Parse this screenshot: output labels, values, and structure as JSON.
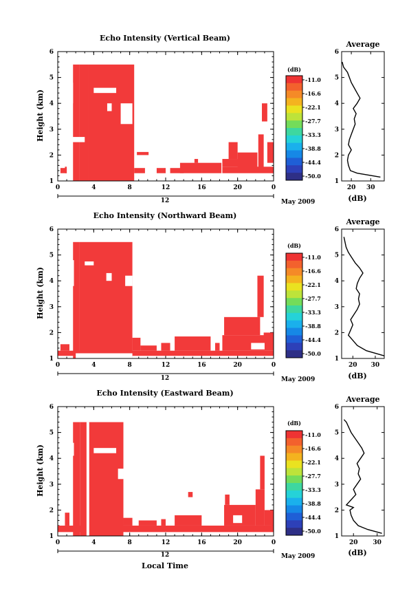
{
  "figure": {
    "x_axis_label": "Local Time",
    "date_label": "May 2009",
    "day_label": "12"
  },
  "chart_data": [
    {
      "type": "heatmap",
      "title": "Echo Intensity (Vertical Beam)",
      "ylabel": "Height (km)",
      "xlim": [
        0,
        24
      ],
      "ylim": [
        1,
        6
      ],
      "xticks": [
        "0",
        "4",
        "8",
        "12",
        "16",
        "20",
        "0"
      ],
      "yticks": [
        "1",
        "2",
        "3",
        "4",
        "5",
        "6"
      ],
      "colorbar": {
        "title": "(dB)",
        "labels": [
          "-11.0",
          "-16.6",
          "-22.1",
          "-27.7",
          "-33.3",
          "-38.8",
          "-44.4",
          "-50.0"
        ]
      },
      "cells": [
        [
          0.8,
          1.0,
          1.3,
          1.55
        ],
        [
          0.3,
          1.0,
          1.3,
          1.5
        ],
        [
          1.7,
          2.4,
          1.0,
          5.5
        ],
        [
          2.4,
          3.4,
          1.0,
          5.5
        ],
        [
          3.4,
          8.5,
          1.0,
          5.5
        ],
        [
          8.5,
          9.7,
          1.3,
          1.5
        ],
        [
          8.8,
          10.1,
          2.0,
          2.12
        ],
        [
          11.0,
          12.0,
          1.3,
          1.5
        ],
        [
          12.5,
          14.0,
          1.3,
          1.5
        ],
        [
          13.6,
          18.2,
          1.3,
          1.7
        ],
        [
          15.2,
          15.6,
          1.7,
          1.85
        ],
        [
          18.3,
          24.0,
          1.3,
          1.55
        ],
        [
          18.3,
          20.2,
          1.55,
          1.85
        ],
        [
          19.0,
          20.0,
          1.85,
          2.5
        ],
        [
          20.0,
          22.2,
          1.4,
          2.1
        ],
        [
          22.3,
          22.9,
          1.5,
          2.8
        ],
        [
          22.7,
          23.3,
          3.3,
          4.0
        ],
        [
          23.3,
          24.0,
          1.7,
          2.5
        ]
      ],
      "holes": [
        [
          4.0,
          6.5,
          4.4,
          4.6
        ],
        [
          1.3,
          1.7,
          4.0,
          4.8
        ],
        [
          7.0,
          8.3,
          3.2,
          4.0
        ],
        [
          5.5,
          6.0,
          3.7,
          4.0
        ],
        [
          1.5,
          3.0,
          2.5,
          2.7
        ]
      ],
      "average": {
        "xlim": [
          15,
          37
        ],
        "xticks": [
          "20",
          "30"
        ],
        "xlabel": "(dB)",
        "title": "Average",
        "profile": [
          [
            1.15,
            35.0
          ],
          [
            1.3,
            23.0
          ],
          [
            1.4,
            19.5
          ],
          [
            1.6,
            18.5
          ],
          [
            1.8,
            18.0
          ],
          [
            2.0,
            18.5
          ],
          [
            2.2,
            20.0
          ],
          [
            2.4,
            18.5
          ],
          [
            2.6,
            19.0
          ],
          [
            2.8,
            20.0
          ],
          [
            3.0,
            21.0
          ],
          [
            3.2,
            22.0
          ],
          [
            3.4,
            21.5
          ],
          [
            3.6,
            22.5
          ],
          [
            3.8,
            21.0
          ],
          [
            4.0,
            23.0
          ],
          [
            4.2,
            24.5
          ],
          [
            4.4,
            23.0
          ],
          [
            4.6,
            21.5
          ],
          [
            4.8,
            20.0
          ],
          [
            5.0,
            19.0
          ],
          [
            5.2,
            18.0
          ],
          [
            5.4,
            16.0
          ],
          [
            5.6,
            15.3
          ]
        ]
      }
    },
    {
      "type": "heatmap",
      "title": "Echo Intensity (Northward Beam)",
      "ylabel": "Height (km)",
      "xlim": [
        0,
        24
      ],
      "ylim": [
        1,
        6
      ],
      "xticks": [
        "0",
        "4",
        "8",
        "12",
        "16",
        "20",
        "0"
      ],
      "yticks": [
        "1",
        "2",
        "3",
        "4",
        "5",
        "6"
      ],
      "colorbar": {
        "title": "(dB)",
        "labels": [
          "-11.0",
          "-16.6",
          "-22.1",
          "-27.7",
          "-33.3",
          "-38.8",
          "-44.4",
          "-50.0"
        ]
      },
      "cells": [
        [
          0.0,
          24.0,
          1.1,
          1.3
        ],
        [
          0.3,
          1.3,
          1.3,
          1.55
        ],
        [
          1.7,
          2.4,
          1.0,
          5.5
        ],
        [
          2.4,
          8.3,
          1.0,
          5.5
        ],
        [
          8.3,
          9.2,
          1.3,
          1.8
        ],
        [
          9.2,
          11.0,
          1.3,
          1.5
        ],
        [
          11.5,
          12.5,
          1.3,
          1.6
        ],
        [
          13.0,
          17.0,
          1.3,
          1.85
        ],
        [
          17.5,
          18.0,
          1.3,
          1.6
        ],
        [
          18.3,
          24.0,
          1.3,
          1.9
        ],
        [
          18.5,
          22.5,
          1.9,
          2.6
        ],
        [
          22.2,
          22.9,
          2.6,
          4.2
        ],
        [
          22.9,
          24.0,
          1.4,
          2.0
        ]
      ],
      "holes": [
        [
          2.0,
          8.3,
          1.0,
          1.2
        ],
        [
          1.4,
          1.8,
          3.8,
          4.8
        ],
        [
          3.0,
          4.0,
          4.6,
          4.75
        ],
        [
          5.4,
          6.0,
          4.0,
          4.3
        ],
        [
          7.5,
          8.3,
          3.8,
          4.2
        ],
        [
          21.5,
          23.0,
          1.35,
          1.6
        ]
      ],
      "average": {
        "xlim": [
          15,
          34
        ],
        "xticks": [
          "20",
          "30"
        ],
        "xlabel": "(dB)",
        "title": "Average",
        "profile": [
          [
            1.1,
            34.0
          ],
          [
            1.3,
            26.0
          ],
          [
            1.5,
            22.0
          ],
          [
            1.7,
            20.0
          ],
          [
            1.9,
            18.0
          ],
          [
            2.1,
            19.0
          ],
          [
            2.3,
            20.0
          ],
          [
            2.5,
            19.0
          ],
          [
            2.7,
            20.5
          ],
          [
            2.9,
            22.0
          ],
          [
            3.1,
            23.0
          ],
          [
            3.3,
            22.5
          ],
          [
            3.5,
            23.0
          ],
          [
            3.7,
            21.5
          ],
          [
            3.9,
            22.0
          ],
          [
            4.1,
            23.0
          ],
          [
            4.3,
            24.5
          ],
          [
            4.5,
            23.0
          ],
          [
            4.7,
            21.0
          ],
          [
            4.9,
            19.5
          ],
          [
            5.1,
            18.0
          ],
          [
            5.3,
            17.0
          ],
          [
            5.5,
            16.5
          ],
          [
            5.7,
            16.0
          ]
        ]
      }
    },
    {
      "type": "heatmap",
      "title": "Echo Intensity (Eastward Beam)",
      "ylabel": "Height (km)",
      "xlim": [
        0,
        24
      ],
      "ylim": [
        1,
        6
      ],
      "xticks": [
        "0",
        "4",
        "8",
        "12",
        "16",
        "20",
        "0"
      ],
      "yticks": [
        "1",
        "2",
        "3",
        "4",
        "5",
        "6"
      ],
      "colorbar": {
        "title": "(dB)",
        "labels": [
          "-11.0",
          "-16.6",
          "-22.1",
          "-27.7",
          "-33.3",
          "-38.8",
          "-44.4",
          "-50.0"
        ]
      },
      "cells": [
        [
          0.0,
          24.0,
          1.15,
          1.4
        ],
        [
          0.8,
          1.3,
          1.4,
          1.9
        ],
        [
          1.7,
          2.5,
          1.0,
          5.4
        ],
        [
          2.5,
          7.3,
          1.0,
          5.4
        ],
        [
          7.3,
          8.3,
          1.4,
          1.7
        ],
        [
          9.0,
          11.0,
          1.4,
          1.6
        ],
        [
          11.5,
          12.0,
          1.4,
          1.65
        ],
        [
          13.0,
          16.0,
          1.4,
          1.8
        ],
        [
          14.5,
          15.0,
          2.5,
          2.7
        ],
        [
          18.5,
          22.0,
          1.4,
          2.2
        ],
        [
          18.6,
          19.1,
          2.2,
          2.6
        ],
        [
          22.0,
          23.0,
          1.4,
          2.8
        ],
        [
          22.5,
          23.0,
          2.8,
          4.1
        ],
        [
          23.0,
          24.0,
          1.4,
          2.0
        ]
      ],
      "holes": [
        [
          1.3,
          1.8,
          4.1,
          4.6
        ],
        [
          3.2,
          3.5,
          1.0,
          5.4
        ],
        [
          4.0,
          6.5,
          4.2,
          4.4
        ],
        [
          6.7,
          7.3,
          3.2,
          3.6
        ],
        [
          19.5,
          20.5,
          1.5,
          1.8
        ]
      ],
      "average": {
        "xlim": [
          15,
          33
        ],
        "xticks": [
          "20",
          "30"
        ],
        "xlabel": "(dB)",
        "title": "Average",
        "profile": [
          [
            1.1,
            32.0
          ],
          [
            1.25,
            26.0
          ],
          [
            1.4,
            22.0
          ],
          [
            1.6,
            20.0
          ],
          [
            1.8,
            19.0
          ],
          [
            2.0,
            18.5
          ],
          [
            2.1,
            20.0
          ],
          [
            2.2,
            17.0
          ],
          [
            2.4,
            19.0
          ],
          [
            2.6,
            21.0
          ],
          [
            2.8,
            20.0
          ],
          [
            3.0,
            21.5
          ],
          [
            3.2,
            23.0
          ],
          [
            3.4,
            22.0
          ],
          [
            3.6,
            22.5
          ],
          [
            3.8,
            21.5
          ],
          [
            4.0,
            23.0
          ],
          [
            4.2,
            24.5
          ],
          [
            4.4,
            23.5
          ],
          [
            4.6,
            22.0
          ],
          [
            4.8,
            20.5
          ],
          [
            5.0,
            19.0
          ],
          [
            5.2,
            18.0
          ],
          [
            5.4,
            17.0
          ],
          [
            5.5,
            16.0
          ]
        ]
      }
    }
  ]
}
